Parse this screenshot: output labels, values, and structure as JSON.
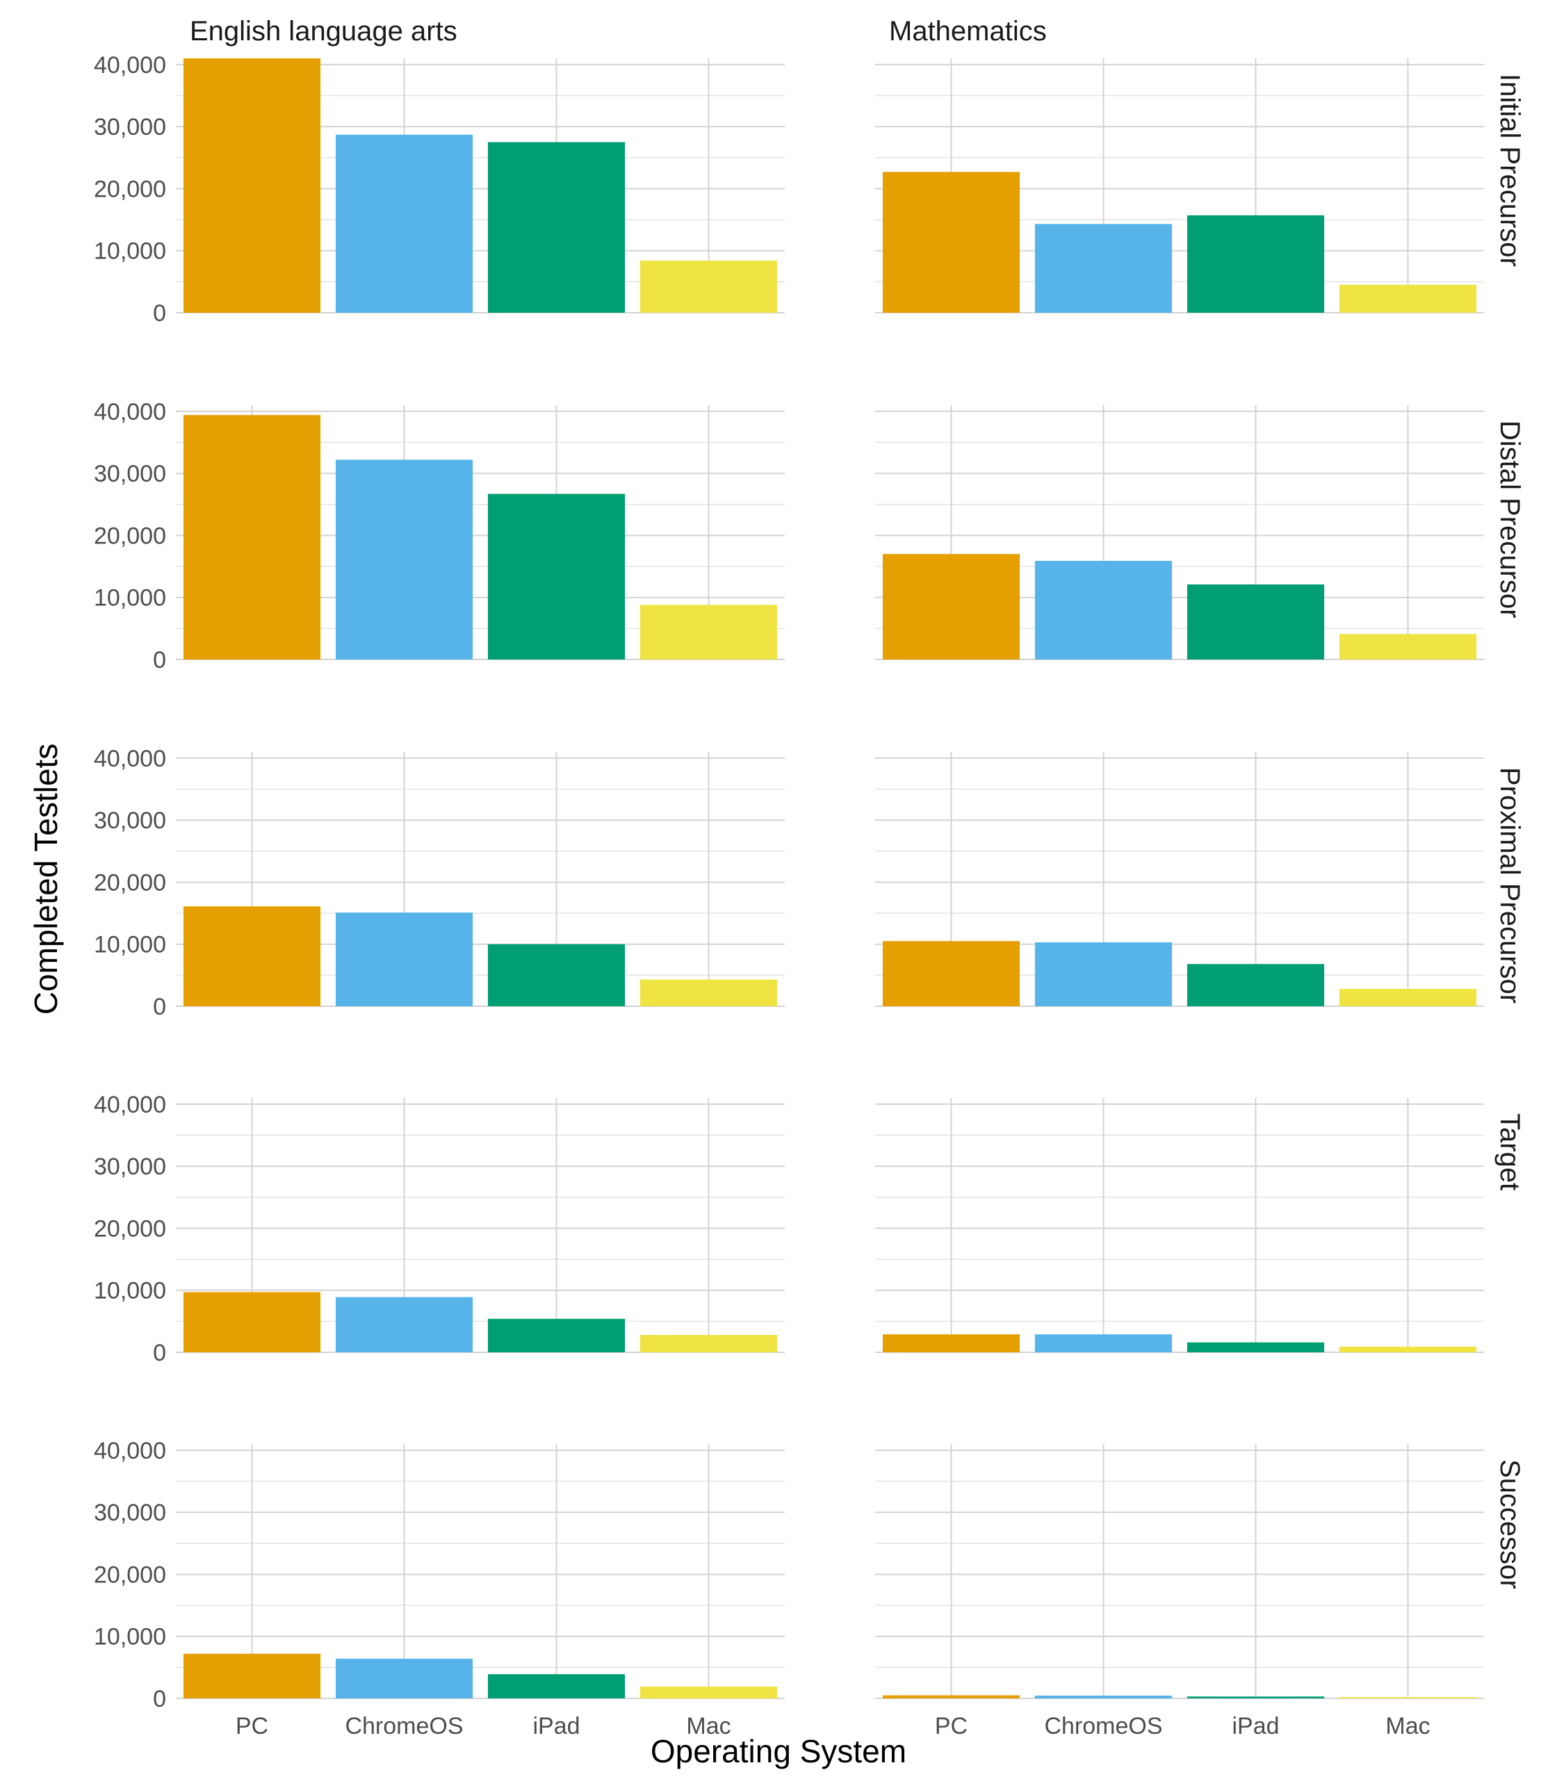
{
  "chart_data": {
    "type": "bar",
    "facet_columns": [
      "English language arts",
      "Mathematics"
    ],
    "facet_rows": [
      "Initial Precursor",
      "Distal Precursor",
      "Proximal Precursor",
      "Target",
      "Successor"
    ],
    "categories": [
      "PC",
      "ChromeOS",
      "iPad",
      "Mac"
    ],
    "category_colors": [
      "#E69F00",
      "#56B4E9",
      "#009E73",
      "#F0E442"
    ],
    "xlabel": "Operating System",
    "ylabel": "Completed Testlets",
    "ylim": [
      0,
      41000
    ],
    "y_ticks": [
      0,
      10000,
      20000,
      30000,
      40000
    ],
    "y_tick_labels": [
      "0",
      "10,000",
      "20,000",
      "30,000",
      "40,000"
    ],
    "grid": true,
    "panels": [
      {
        "column": "English language arts",
        "row": "Initial Precursor",
        "values": [
          41500,
          28700,
          27500,
          8400
        ]
      },
      {
        "column": "Mathematics",
        "row": "Initial Precursor",
        "values": [
          22700,
          14300,
          15700,
          4500
        ]
      },
      {
        "column": "English language arts",
        "row": "Distal Precursor",
        "values": [
          39400,
          32200,
          26700,
          8800
        ]
      },
      {
        "column": "Mathematics",
        "row": "Distal Precursor",
        "values": [
          17000,
          15900,
          12100,
          4100
        ]
      },
      {
        "column": "English language arts",
        "row": "Proximal Precursor",
        "values": [
          16100,
          15100,
          10000,
          4300
        ]
      },
      {
        "column": "Mathematics",
        "row": "Proximal Precursor",
        "values": [
          10500,
          10300,
          6800,
          2800
        ]
      },
      {
        "column": "English language arts",
        "row": "Target",
        "values": [
          9700,
          8900,
          5400,
          2800
        ]
      },
      {
        "column": "Mathematics",
        "row": "Target",
        "values": [
          2900,
          2900,
          1600,
          900
        ]
      },
      {
        "column": "English language arts",
        "row": "Successor",
        "values": [
          7200,
          6400,
          3900,
          1900
        ]
      },
      {
        "column": "Mathematics",
        "row": "Successor",
        "values": [
          500,
          450,
          300,
          200
        ]
      }
    ]
  }
}
